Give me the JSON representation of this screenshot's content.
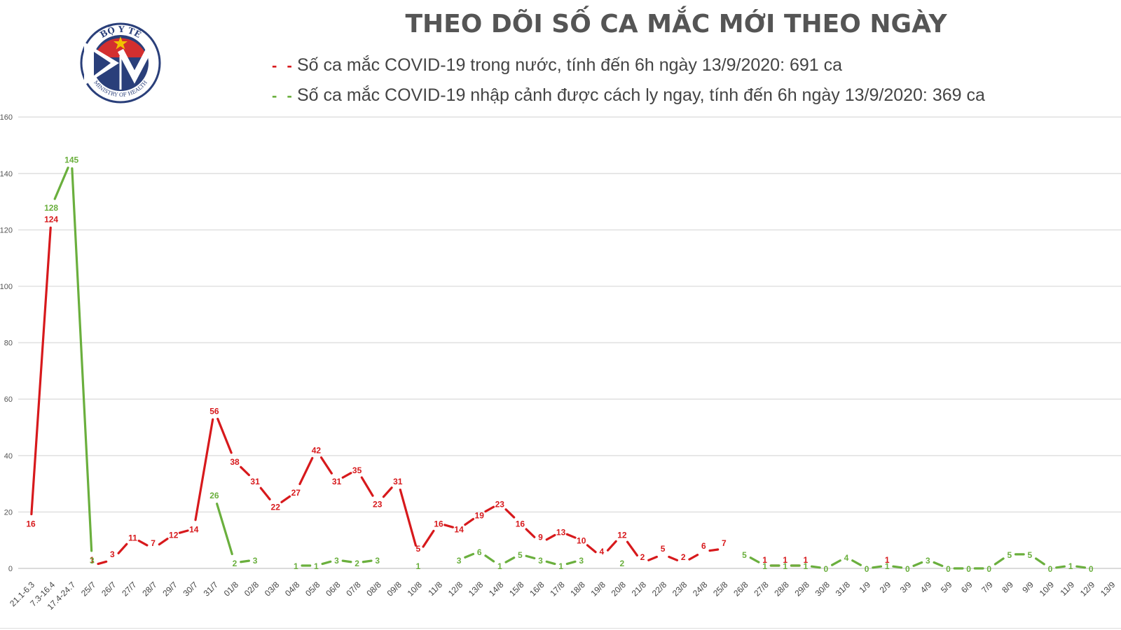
{
  "logo": {
    "top_text": "BỘ Y TẾ",
    "bottom_text": "MINISTRY OF HEALTH",
    "colors": {
      "ring": "#2a3f7a",
      "red": "#d32f2f",
      "star": "#f2c200"
    }
  },
  "chart_data": {
    "type": "line",
    "title": "THEO DÕI SỐ CA MẮC MỚI THEO NGÀY",
    "xlabel": "",
    "ylabel": "",
    "ylim": [
      0,
      160
    ],
    "yticks": [
      0,
      20,
      40,
      60,
      80,
      100,
      120,
      140,
      160
    ],
    "grid": true,
    "legend_position": "top",
    "categories": [
      "21.1-6.3",
      "7.3-16.4",
      "17.4-24.7",
      "25/7",
      "26/7",
      "27/7",
      "28/7",
      "29/7",
      "30/7",
      "31/7",
      "01/8",
      "02/8",
      "03/8",
      "04/8",
      "05/8",
      "06/8",
      "07/8",
      "08/8",
      "09/8",
      "10/8",
      "11/8",
      "12/8",
      "13/8",
      "14/8",
      "15/8",
      "16/8",
      "17/8",
      "18/8",
      "19/8",
      "20/8",
      "21/8",
      "22/8",
      "23/8",
      "24/8",
      "25/8",
      "26/8",
      "27/8",
      "28/8",
      "29/8",
      "30/8",
      "31/8",
      "1/9",
      "2/9",
      "3/9",
      "4/9",
      "5/9",
      "6/9",
      "7/9",
      "8/9",
      "9/9",
      "10/9",
      "11/9",
      "12/9",
      "13/9"
    ],
    "series": [
      {
        "name": "Số ca mắc COVID-19 trong nước, tính đến 6h ngày 13/9/2020: 691 ca",
        "color": "#d7191c",
        "values": [
          16,
          124,
          null,
          1,
          3,
          11,
          7,
          12,
          14,
          56,
          38,
          31,
          22,
          27,
          42,
          31,
          35,
          23,
          31,
          5,
          16,
          14,
          19,
          23,
          16,
          9,
          13,
          10,
          4,
          12,
          2,
          5,
          2,
          6,
          7,
          null,
          1,
          1,
          1,
          null,
          null,
          null,
          1,
          null,
          null,
          null,
          null,
          null,
          null,
          null,
          null,
          null,
          null,
          null
        ]
      },
      {
        "name": "Số ca mắc COVID-19 nhập cảnh được cách ly ngay, tính đến 6h ngày 13/9/2020: 369 ca",
        "color": "#6aaf3d",
        "values": [
          null,
          128,
          145,
          3,
          null,
          null,
          null,
          null,
          null,
          26,
          2,
          3,
          null,
          1,
          1,
          3,
          2,
          3,
          null,
          1,
          null,
          3,
          6,
          1,
          5,
          3,
          1,
          3,
          null,
          2,
          null,
          null,
          null,
          null,
          null,
          5,
          1,
          1,
          1,
          0,
          4,
          0,
          1,
          0,
          3,
          0,
          0,
          0,
          5,
          5,
          0,
          1,
          0,
          null
        ]
      }
    ]
  }
}
